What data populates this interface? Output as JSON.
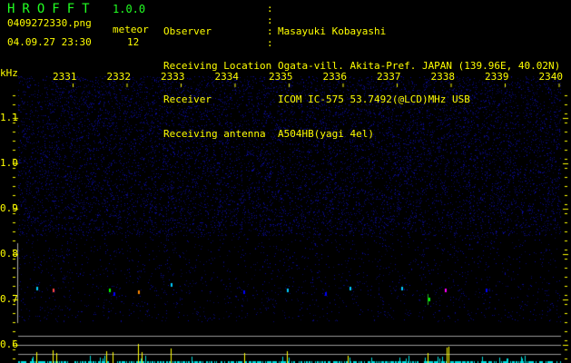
{
  "app": {
    "title": "HROFFT",
    "version": "1.0.0"
  },
  "file": {
    "name": "0409272330.png",
    "datetime": "04.09.27 23:30"
  },
  "meteor": {
    "label": "meteor",
    "count": "12"
  },
  "info": [
    {
      "label": "Observer",
      "value": "Masayuki Kobayashi"
    },
    {
      "label": "Receiving Location",
      "value": "Ogata-vill. Akita-Pref. JAPAN (139.96E, 40.02N)"
    },
    {
      "label": "Receiver",
      "value": "ICOM IC-575 53.7492(@LCD)MHz USB"
    },
    {
      "label": "Receiving antenna",
      "value": "A504HB(yagi 4el)"
    }
  ],
  "axis": {
    "unit": "kHz",
    "x_ticks": [
      "2331",
      "2332",
      "2333",
      "2334",
      "2335",
      "2336",
      "2337",
      "2338",
      "2339",
      "2340"
    ],
    "y_ticks": [
      "1.1",
      "1.0",
      "0.9",
      "0.8",
      "0.7",
      "0.6"
    ]
  },
  "colors": {
    "text": "#ffff00",
    "title": "#22ff22",
    "noise": "#1a1aa0",
    "counts": "#00e0e0"
  }
}
